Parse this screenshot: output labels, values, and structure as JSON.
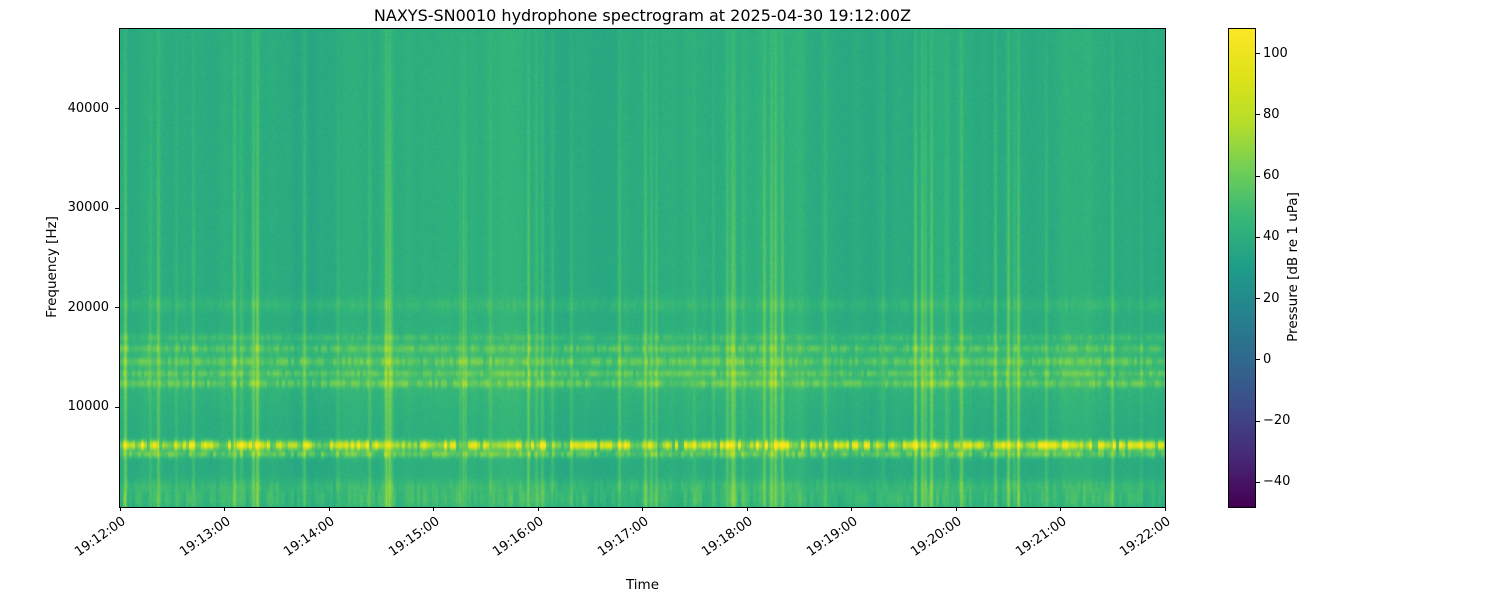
{
  "chart_data": {
    "type": "heatmap",
    "title": "NAXYS-SN0010 hydrophone spectrogram at 2025-04-30 19:12:00Z",
    "xlabel": "Time",
    "ylabel": "Frequency [Hz]",
    "x_tick_labels": [
      "19:12:00",
      "19:13:00",
      "19:14:00",
      "19:15:00",
      "19:16:00",
      "19:17:00",
      "19:18:00",
      "19:19:00",
      "19:20:00",
      "19:21:00",
      "19:22:00"
    ],
    "y_tick_values": [
      10000,
      20000,
      30000,
      40000
    ],
    "y_tick_labels": [
      "10000",
      "20000",
      "30000",
      "40000"
    ],
    "ylim": [
      0,
      48000
    ],
    "layout": {
      "grid": false,
      "legend": false,
      "colorbar_position": "right"
    },
    "colorbar": {
      "label": "Pressure [dB re 1 uPa]",
      "tick_values": [
        100,
        80,
        60,
        40,
        20,
        0,
        -20,
        -40
      ],
      "tick_labels": [
        "100",
        "80",
        "60",
        "40",
        "20",
        "0",
        "−20",
        "−40"
      ],
      "vmin": -48,
      "vmax": 108,
      "colormap": "viridis",
      "colormap_stops": [
        [
          0.0,
          "#440154"
        ],
        [
          0.1,
          "#482878"
        ],
        [
          0.2,
          "#3e4a89"
        ],
        [
          0.3,
          "#31688e"
        ],
        [
          0.4,
          "#26828e"
        ],
        [
          0.5,
          "#1f9e89"
        ],
        [
          0.6,
          "#35b779"
        ],
        [
          0.7,
          "#6ece58"
        ],
        [
          0.8,
          "#b5de2b"
        ],
        [
          0.9,
          "#dfe318"
        ],
        [
          1.0,
          "#fde725"
        ]
      ]
    },
    "background_level_db": 40,
    "tonal_bands": [
      {
        "freq_hz": 6200,
        "sigma_hz": 320,
        "amp_db": 40,
        "flicker": 0.75
      },
      {
        "freq_hz": 5300,
        "sigma_hz": 260,
        "amp_db": 16,
        "flicker": 0.65
      },
      {
        "freq_hz": 800,
        "sigma_hz": 700,
        "amp_db": 7,
        "flicker": 0.85
      },
      {
        "freq_hz": 2100,
        "sigma_hz": 500,
        "amp_db": 6,
        "flicker": 0.55
      },
      {
        "freq_hz": 12400,
        "sigma_hz": 300,
        "amp_db": 13,
        "flicker": 0.6
      },
      {
        "freq_hz": 13400,
        "sigma_hz": 260,
        "amp_db": 11,
        "flicker": 0.6
      },
      {
        "freq_hz": 14600,
        "sigma_hz": 330,
        "amp_db": 12,
        "flicker": 0.6
      },
      {
        "freq_hz": 15900,
        "sigma_hz": 300,
        "amp_db": 11,
        "flicker": 0.6
      },
      {
        "freq_hz": 17000,
        "sigma_hz": 260,
        "amp_db": 7,
        "flicker": 0.6
      },
      {
        "freq_hz": 13500,
        "sigma_hz": 2600,
        "amp_db": 5,
        "flicker": 0.3
      },
      {
        "freq_hz": 20300,
        "sigma_hz": 500,
        "amp_db": 5,
        "flicker": 0.5
      }
    ],
    "vertical_streaks": {
      "probability_per_column": 0.058,
      "amp_db_range": [
        6,
        22
      ],
      "full_height": true
    }
  }
}
